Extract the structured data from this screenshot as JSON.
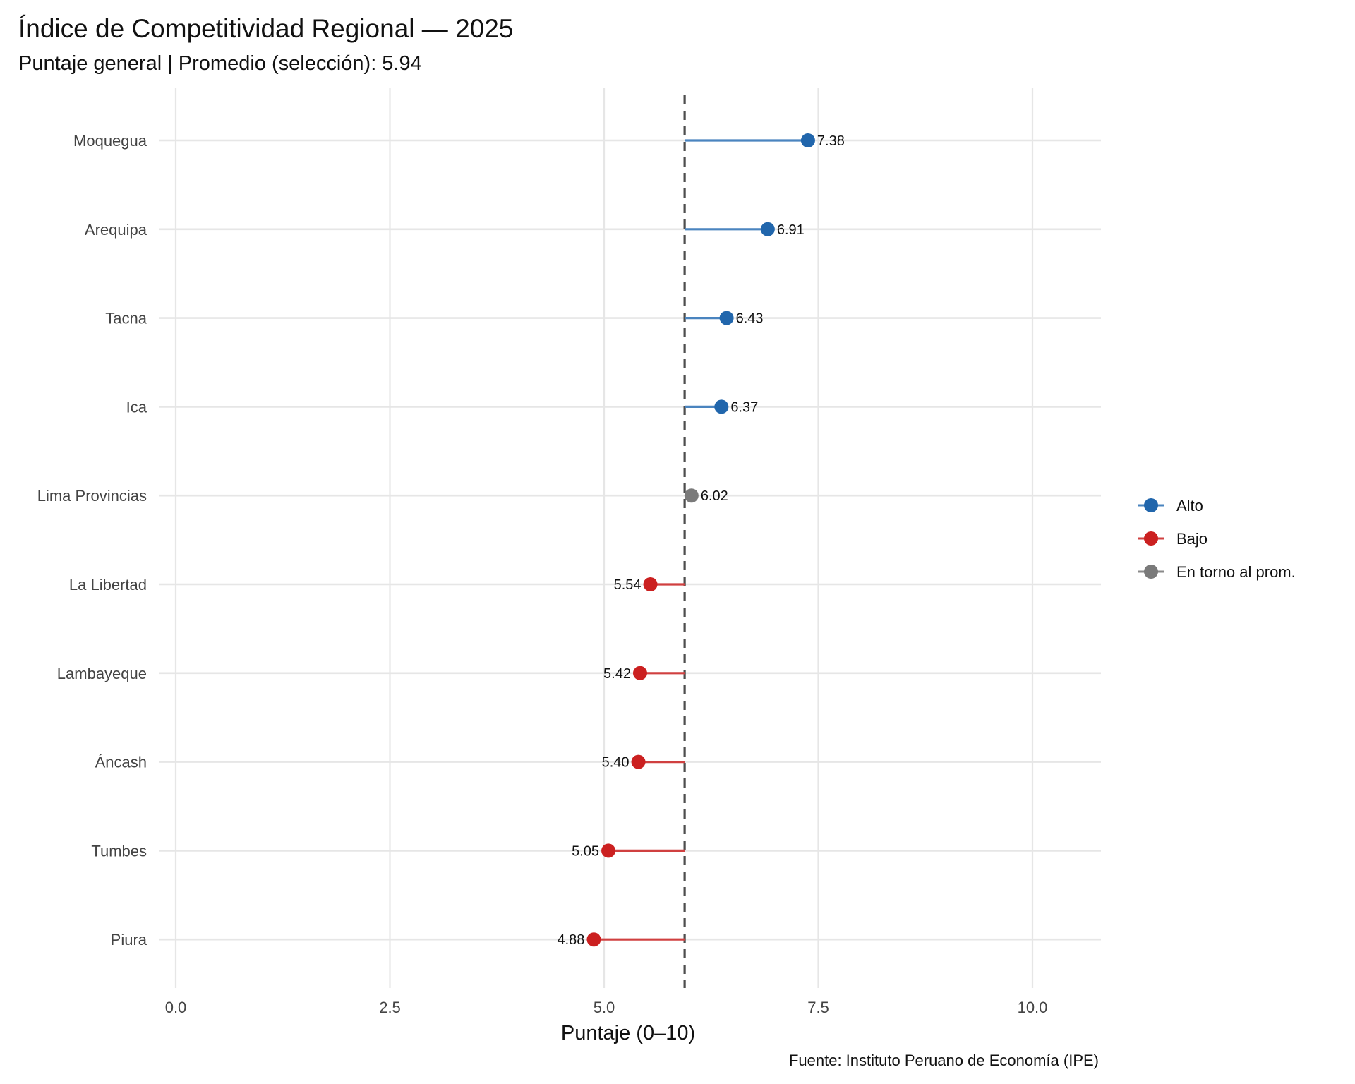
{
  "chart_data": {
    "type": "lollipop",
    "title": "Índice de Competitividad Regional — 2025",
    "subtitle": "Puntaje general | Promedio (selección): 5.94",
    "xlabel": "Puntaje (0–10)",
    "ylabel": "",
    "caption": "Fuente: Instituto Peruano de Economía (IPE)",
    "xlim": [
      0,
      10.8
    ],
    "xticks": [
      0,
      2.5,
      5,
      7.5,
      10
    ],
    "xtick_labels": [
      "0.0",
      "2.5",
      "5.0",
      "7.5",
      "10.0"
    ],
    "reference_line": 5.94,
    "categories": [
      "Moquegua",
      "Arequipa",
      "Tacna",
      "Ica",
      "Lima Provincias",
      "La Libertad",
      "Lambayeque",
      "Áncash",
      "Tumbes",
      "Piura"
    ],
    "values": [
      7.38,
      6.91,
      6.43,
      6.37,
      6.02,
      5.54,
      5.42,
      5.4,
      5.05,
      4.88
    ],
    "value_labels": [
      "7.38",
      "6.91",
      "6.43",
      "6.37",
      "6.02",
      "5.54",
      "5.42",
      "5.40",
      "5.05",
      "4.88"
    ],
    "groups": [
      "Alto",
      "Alto",
      "Alto",
      "Alto",
      "En torno al prom.",
      "Bajo",
      "Bajo",
      "Bajo",
      "Bajo",
      "Bajo"
    ],
    "legend": [
      {
        "name": "Alto",
        "color": "#2166ac"
      },
      {
        "name": "Bajo",
        "color": "#cb2020"
      },
      {
        "name": "En torno al prom.",
        "color": "#7a7a7a"
      }
    ],
    "legend_position": "right",
    "grid": true
  }
}
